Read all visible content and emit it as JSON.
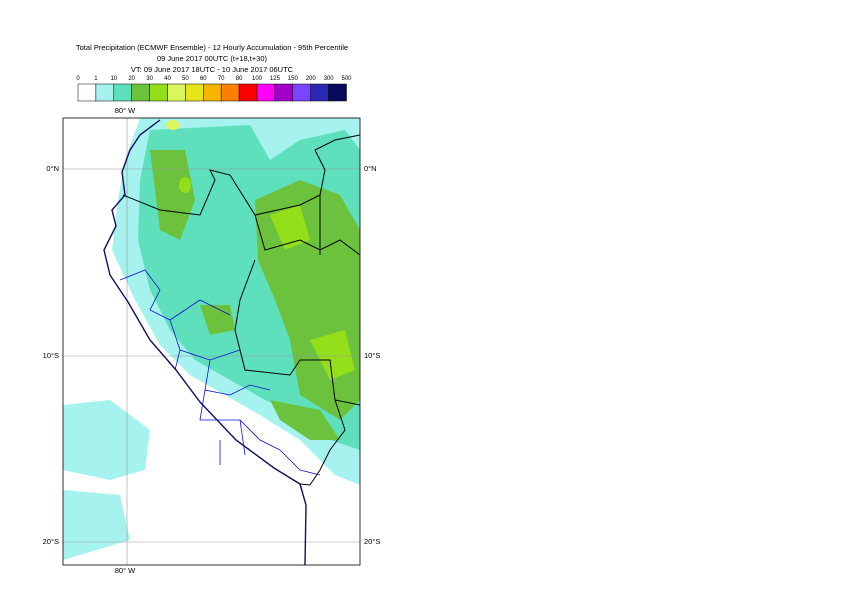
{
  "header": {
    "title": [
      "Total Precipitation (ECMWF Ensemble) - 12 Hourly Accumulation - 95th Percentile",
      "09 June 2017 00UTC (t+18,t+30)",
      "VT: 09 June 2017 18UTC - 10 June 2017 06UTC"
    ]
  },
  "legend": {
    "labels": [
      "0",
      "1",
      "10",
      "20",
      "30",
      "40",
      "50",
      "60",
      "70",
      "80",
      "100",
      "125",
      "150",
      "200",
      "300",
      "500"
    ],
    "colors": [
      "#ffffff",
      "#a6f2ee",
      "#5fe0bc",
      "#6cc23c",
      "#93e01a",
      "#dcf55a",
      "#e6e61a",
      "#f5b400",
      "#ff8000",
      "#ff0000",
      "#ff00ff",
      "#a000c8",
      "#7846ff",
      "#2828b4",
      "#0a0a5a"
    ]
  },
  "map": {
    "labels": [
      "80° W",
      "0°N",
      "10°S",
      "20°S"
    ]
  }
}
